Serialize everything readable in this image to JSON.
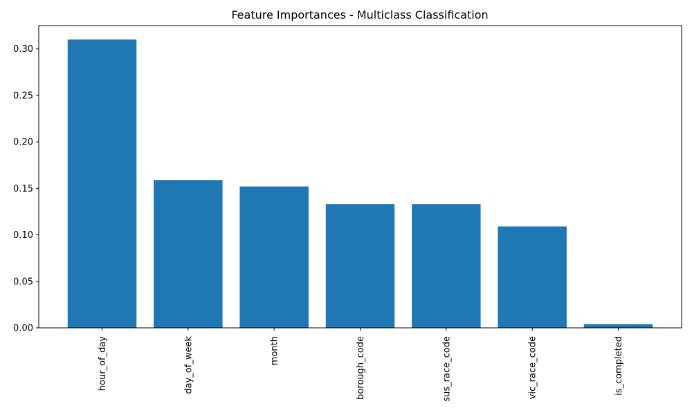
{
  "chart_data": {
    "type": "bar",
    "title": "Feature Importances - Multiclass Classification",
    "xlabel": "",
    "ylabel": "",
    "categories": [
      "hour_of_day",
      "day_of_week",
      "month",
      "borough_code",
      "sus_race_code",
      "vic_race_code",
      "is_completed"
    ],
    "values": [
      0.31,
      0.159,
      0.152,
      0.133,
      0.133,
      0.109,
      0.004
    ],
    "ylim": [
      0,
      0.325
    ],
    "yticks": [
      "0.00",
      "0.05",
      "0.10",
      "0.15",
      "0.20",
      "0.25",
      "0.30"
    ],
    "bar_color": "#1f77b4",
    "grid": false,
    "legend": "none"
  }
}
